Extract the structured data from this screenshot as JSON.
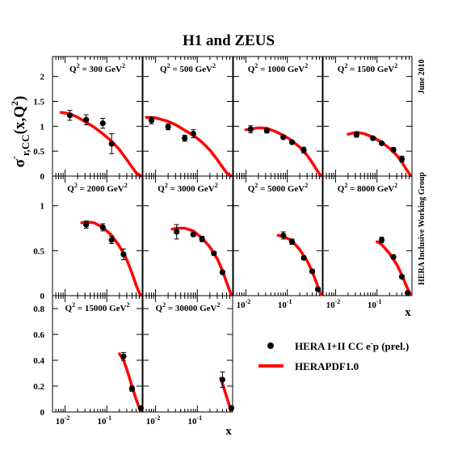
{
  "title": "H1 and ZEUS",
  "ylabel": {
    "main": "σ",
    "sup": "-",
    "sub": "r,CC",
    "rest": "(x,Q",
    "q_exp": "2",
    "close": ")"
  },
  "xlabel": "x",
  "side_date": "June 2010",
  "side_group": "HERA Inclusive Working Group",
  "legend": {
    "data_label_pre": "HERA I+II CC e",
    "data_label_sup": "-",
    "data_label_post": "p (prel.)",
    "fit_label": "HERAPDF1.0",
    "marker_color": "#000000",
    "fit_color": "#ff0000"
  },
  "colors": {
    "fit": "#ff0000",
    "data": "#000000",
    "axes": "#000000"
  },
  "chart_data": {
    "type": "scatter",
    "x_scale": "log",
    "xlim": [
      0.005,
      0.7
    ],
    "x_ticks": [
      {
        "value": 0.01,
        "label_base": "10",
        "label_exp": "-2"
      },
      {
        "value": 0.1,
        "label_base": "10",
        "label_exp": "-1"
      }
    ],
    "rows": [
      {
        "ylim": [
          0,
          2.4
        ],
        "y_ticks": [
          {
            "value": 0,
            "label": "0"
          },
          {
            "value": 0.5,
            "label": "0.5"
          },
          {
            "value": 1,
            "label": "1"
          },
          {
            "value": 1.5,
            "label": "1.5"
          },
          {
            "value": 2,
            "label": "2"
          }
        ]
      },
      {
        "ylim": [
          0,
          1.33
        ],
        "y_ticks": [
          {
            "value": 0,
            "label": "0"
          },
          {
            "value": 0.5,
            "label": "0.5"
          },
          {
            "value": 1,
            "label": "1"
          }
        ]
      },
      {
        "ylim": [
          0,
          0.9
        ],
        "y_ticks": [
          {
            "value": 0,
            "label": "0"
          },
          {
            "value": 0.2,
            "label": "0.2"
          },
          {
            "value": 0.4,
            "label": "0.4"
          },
          {
            "value": 0.6,
            "label": "0.6"
          },
          {
            "value": 0.8,
            "label": "0.8"
          }
        ]
      }
    ],
    "panels": [
      {
        "label_pre": "Q",
        "label_mid": " = 300 GeV",
        "sup": "2",
        "row": 0,
        "col": 0,
        "data": [
          {
            "x": 0.013,
            "y": 1.22,
            "err": 0.1
          },
          {
            "x": 0.032,
            "y": 1.13,
            "err": 0.1
          },
          {
            "x": 0.08,
            "y": 1.06,
            "err": 0.1
          },
          {
            "x": 0.13,
            "y": 0.65,
            "err": 0.2
          }
        ],
        "fit": [
          [
            0.008,
            1.28
          ],
          [
            0.013,
            1.25
          ],
          [
            0.02,
            1.18
          ],
          [
            0.032,
            1.08
          ],
          [
            0.05,
            0.98
          ],
          [
            0.08,
            0.85
          ],
          [
            0.13,
            0.7
          ],
          [
            0.2,
            0.53
          ],
          [
            0.3,
            0.33
          ],
          [
            0.4,
            0.18
          ],
          [
            0.5,
            0.07
          ],
          [
            0.6,
            0.02
          ],
          [
            0.65,
            0.005
          ]
        ]
      },
      {
        "label_pre": "Q",
        "label_mid": " = 500 GeV",
        "sup": "2",
        "row": 0,
        "col": 1,
        "data": [
          {
            "x": 0.008,
            "y": 1.12,
            "err": 0.07
          },
          {
            "x": 0.02,
            "y": 0.99,
            "err": 0.06
          },
          {
            "x": 0.05,
            "y": 0.76,
            "err": 0.06
          },
          {
            "x": 0.08,
            "y": 0.85,
            "err": 0.08
          }
        ],
        "fit": [
          [
            0.006,
            1.18
          ],
          [
            0.01,
            1.17
          ],
          [
            0.02,
            1.1
          ],
          [
            0.032,
            1.02
          ],
          [
            0.05,
            0.92
          ],
          [
            0.08,
            0.82
          ],
          [
            0.13,
            0.68
          ],
          [
            0.2,
            0.52
          ],
          [
            0.3,
            0.33
          ],
          [
            0.4,
            0.18
          ],
          [
            0.5,
            0.07
          ],
          [
            0.6,
            0.02
          ],
          [
            0.65,
            0.005
          ]
        ]
      },
      {
        "label_pre": "Q",
        "label_mid": " = 1000 GeV",
        "sup": "2",
        "row": 0,
        "col": 2,
        "data": [
          {
            "x": 0.013,
            "y": 0.94,
            "err": 0.07
          },
          {
            "x": 0.032,
            "y": 0.91,
            "err": 0.04
          },
          {
            "x": 0.08,
            "y": 0.78,
            "err": 0.03
          },
          {
            "x": 0.13,
            "y": 0.68,
            "err": 0.03
          },
          {
            "x": 0.25,
            "y": 0.52,
            "err": 0.06
          }
        ],
        "fit": [
          [
            0.01,
            0.93
          ],
          [
            0.02,
            0.97
          ],
          [
            0.032,
            0.96
          ],
          [
            0.05,
            0.9
          ],
          [
            0.08,
            0.82
          ],
          [
            0.13,
            0.71
          ],
          [
            0.2,
            0.58
          ],
          [
            0.3,
            0.42
          ],
          [
            0.4,
            0.27
          ],
          [
            0.5,
            0.14
          ],
          [
            0.6,
            0.04
          ],
          [
            0.65,
            0.01
          ]
        ]
      },
      {
        "label_pre": "Q",
        "label_mid": " = 1500 GeV",
        "sup": "2",
        "row": 0,
        "col": 3,
        "data": [
          {
            "x": 0.032,
            "y": 0.83,
            "err": 0.05
          },
          {
            "x": 0.08,
            "y": 0.76,
            "err": 0.03
          },
          {
            "x": 0.13,
            "y": 0.66,
            "err": 0.03
          },
          {
            "x": 0.25,
            "y": 0.53,
            "err": 0.04
          },
          {
            "x": 0.4,
            "y": 0.34,
            "err": 0.06
          }
        ],
        "fit": [
          [
            0.02,
            0.84
          ],
          [
            0.032,
            0.88
          ],
          [
            0.05,
            0.85
          ],
          [
            0.08,
            0.78
          ],
          [
            0.13,
            0.68
          ],
          [
            0.2,
            0.56
          ],
          [
            0.3,
            0.42
          ],
          [
            0.4,
            0.28
          ],
          [
            0.5,
            0.15
          ],
          [
            0.6,
            0.05
          ],
          [
            0.65,
            0.01
          ]
        ]
      },
      {
        "label_pre": "Q",
        "label_mid": " = 2000 GeV",
        "sup": "2",
        "row": 1,
        "col": 0,
        "data": [
          {
            "x": 0.032,
            "y": 0.79,
            "err": 0.04
          },
          {
            "x": 0.08,
            "y": 0.76,
            "err": 0.04
          },
          {
            "x": 0.13,
            "y": 0.62,
            "err": 0.04
          },
          {
            "x": 0.25,
            "y": 0.46,
            "err": 0.06
          }
        ],
        "fit": [
          [
            0.025,
            0.81
          ],
          [
            0.032,
            0.82
          ],
          [
            0.05,
            0.81
          ],
          [
            0.08,
            0.76
          ],
          [
            0.13,
            0.67
          ],
          [
            0.2,
            0.55
          ],
          [
            0.3,
            0.4
          ],
          [
            0.4,
            0.25
          ],
          [
            0.5,
            0.12
          ],
          [
            0.6,
            0.03
          ],
          [
            0.65,
            0.005
          ]
        ]
      },
      {
        "label_pre": "Q",
        "label_mid": " = 3000 GeV",
        "sup": "2",
        "row": 1,
        "col": 1,
        "data": [
          {
            "x": 0.032,
            "y": 0.71,
            "err": 0.08
          },
          {
            "x": 0.08,
            "y": 0.68,
            "err": 0.02
          },
          {
            "x": 0.13,
            "y": 0.63,
            "err": 0.03
          },
          {
            "x": 0.25,
            "y": 0.47,
            "err": 0.02
          },
          {
            "x": 0.4,
            "y": 0.26,
            "err": 0.02
          }
        ],
        "fit": [
          [
            0.025,
            0.74
          ],
          [
            0.032,
            0.75
          ],
          [
            0.05,
            0.75
          ],
          [
            0.08,
            0.72
          ],
          [
            0.13,
            0.64
          ],
          [
            0.2,
            0.54
          ],
          [
            0.3,
            0.41
          ],
          [
            0.4,
            0.28
          ],
          [
            0.5,
            0.15
          ],
          [
            0.6,
            0.05
          ],
          [
            0.65,
            0.01
          ]
        ]
      },
      {
        "label_pre": "Q",
        "label_mid": " = 5000 GeV",
        "sup": "2",
        "row": 1,
        "col": 2,
        "data": [
          {
            "x": 0.08,
            "y": 0.67,
            "err": 0.04
          },
          {
            "x": 0.13,
            "y": 0.6,
            "err": 0.03
          },
          {
            "x": 0.25,
            "y": 0.42,
            "err": 0.02
          },
          {
            "x": 0.4,
            "y": 0.27,
            "err": 0.02
          },
          {
            "x": 0.55,
            "y": 0.07,
            "err": 0.02
          }
        ],
        "fit": [
          [
            0.06,
            0.67
          ],
          [
            0.08,
            0.66
          ],
          [
            0.13,
            0.61
          ],
          [
            0.2,
            0.51
          ],
          [
            0.3,
            0.39
          ],
          [
            0.4,
            0.27
          ],
          [
            0.5,
            0.15
          ],
          [
            0.6,
            0.05
          ],
          [
            0.65,
            0.01
          ]
        ]
      },
      {
        "label_pre": "Q",
        "label_mid": " = 8000 GeV",
        "sup": "2",
        "row": 1,
        "col": 3,
        "data": [
          {
            "x": 0.13,
            "y": 0.62,
            "err": 0.03
          },
          {
            "x": 0.25,
            "y": 0.43,
            "err": 0.02
          },
          {
            "x": 0.4,
            "y": 0.21,
            "err": 0.02
          },
          {
            "x": 0.55,
            "y": 0.03,
            "err": 0.01
          }
        ],
        "fit": [
          [
            0.1,
            0.6
          ],
          [
            0.13,
            0.57
          ],
          [
            0.2,
            0.47
          ],
          [
            0.3,
            0.35
          ],
          [
            0.4,
            0.23
          ],
          [
            0.5,
            0.12
          ],
          [
            0.6,
            0.04
          ],
          [
            0.65,
            0.01
          ]
        ]
      },
      {
        "label_pre": "Q",
        "label_mid": " = 15000 GeV",
        "sup": "2",
        "row": 2,
        "col": 0,
        "data": [
          {
            "x": 0.25,
            "y": 0.43,
            "err": 0.03
          },
          {
            "x": 0.4,
            "y": 0.18,
            "err": 0.02
          },
          {
            "x": 0.65,
            "y": 0.03,
            "err": 0.01
          }
        ],
        "fit": [
          [
            0.2,
            0.45
          ],
          [
            0.25,
            0.4
          ],
          [
            0.3,
            0.33
          ],
          [
            0.4,
            0.2
          ],
          [
            0.5,
            0.1
          ],
          [
            0.6,
            0.03
          ],
          [
            0.65,
            0.01
          ]
        ]
      },
      {
        "label_pre": "Q",
        "label_mid": " = 30000 GeV",
        "sup": "2",
        "row": 2,
        "col": 1,
        "data": [
          {
            "x": 0.4,
            "y": 0.25,
            "err": 0.06
          },
          {
            "x": 0.65,
            "y": 0.03,
            "err": 0.015
          }
        ],
        "fit": [
          [
            0.36,
            0.26
          ],
          [
            0.4,
            0.22
          ],
          [
            0.5,
            0.12
          ],
          [
            0.6,
            0.04
          ],
          [
            0.65,
            0.01
          ]
        ]
      }
    ]
  }
}
